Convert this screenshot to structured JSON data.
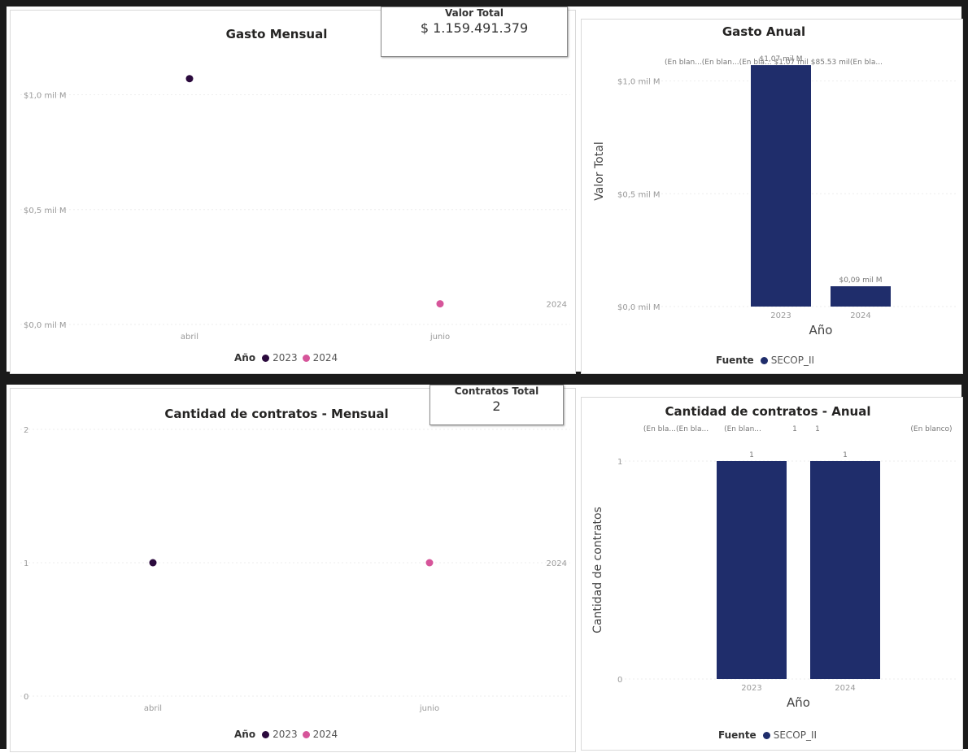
{
  "top": {
    "monthly": {
      "title": "Gasto Mensual",
      "legend": {
        "title": "Año",
        "items": [
          {
            "label": "2023",
            "color": "#2b0a3d"
          },
          {
            "label": "2024",
            "color": "#d6559a"
          }
        ]
      },
      "end_label": "2024"
    },
    "kpi": {
      "label": "Valor Total",
      "value": "$ 1.159.491.379"
    },
    "annual": {
      "title": "Gasto Anual",
      "data_labels_row": "(En blan...(En blan...(En bla... $1.07 mil $85.53 mil(En bla...",
      "bar_labels": [
        "$1,07 mil M",
        "$0,09 mil M"
      ],
      "legend": {
        "title": "Fuente",
        "items": [
          {
            "label": "SECOP_II",
            "color": "#1f2d6b"
          }
        ]
      }
    }
  },
  "bottom": {
    "monthly": {
      "title": "Cantidad de contratos - Mensual",
      "legend": {
        "title": "Año",
        "items": [
          {
            "label": "2023",
            "color": "#2b0a3d"
          },
          {
            "label": "2024",
            "color": "#d6559a"
          }
        ]
      },
      "end_label": "2024"
    },
    "kpi": {
      "label": "Contratos Total",
      "value": "2"
    },
    "annual": {
      "title": "Cantidad de contratos - Anual",
      "data_labels_row": [
        "(En bla...(En bla...",
        "(En blan...",
        "1",
        "1",
        "(En blanco)"
      ],
      "bar_labels": [
        "1",
        "1"
      ],
      "legend": {
        "title": "Fuente",
        "items": [
          {
            "label": "SECOP_II",
            "color": "#1f2d6b"
          }
        ]
      }
    }
  },
  "chart_data": [
    {
      "type": "scatter",
      "title": "Gasto Mensual",
      "categories": [
        "abril",
        "junio"
      ],
      "series": [
        {
          "name": "2023",
          "x": "abril",
          "values": [
            1.07
          ],
          "color": "#2b0a3d"
        },
        {
          "name": "2024",
          "x": "junio",
          "values": [
            0.09
          ],
          "color": "#d6559a"
        }
      ],
      "yticks": [
        "$0,0 mil M",
        "$0,5 mil M",
        "$1,0 mil M"
      ],
      "ylim": [
        0,
        1.2
      ],
      "grid": true,
      "legend_position": "bottom"
    },
    {
      "type": "bar",
      "title": "Gasto Anual",
      "categories": [
        "2023",
        "2024"
      ],
      "values": [
        1.07,
        0.09
      ],
      "xlabel": "Año",
      "ylabel": "Valor Total",
      "yticks": [
        "$0,0 mil M",
        "$0,5 mil M",
        "$1,0 mil M"
      ],
      "ylim": [
        0,
        1.2
      ],
      "color": "#1f2d6b",
      "legend_position": "bottom"
    },
    {
      "type": "scatter",
      "title": "Cantidad de contratos - Mensual",
      "categories": [
        "abril",
        "junio"
      ],
      "series": [
        {
          "name": "2023",
          "x": "abril",
          "values": [
            1
          ],
          "color": "#2b0a3d"
        },
        {
          "name": "2024",
          "x": "junio",
          "values": [
            1
          ],
          "color": "#d6559a"
        }
      ],
      "yticks": [
        "0",
        "1",
        "2"
      ],
      "ylim": [
        0,
        2
      ],
      "grid": true,
      "legend_position": "bottom"
    },
    {
      "type": "bar",
      "title": "Cantidad de contratos - Anual",
      "categories": [
        "2023",
        "2024"
      ],
      "values": [
        1,
        1
      ],
      "xlabel": "Año",
      "ylabel": "Cantidad de contratos",
      "yticks": [
        "0",
        "1"
      ],
      "ylim": [
        0,
        1
      ],
      "color": "#1f2d6b",
      "legend_position": "bottom"
    }
  ]
}
